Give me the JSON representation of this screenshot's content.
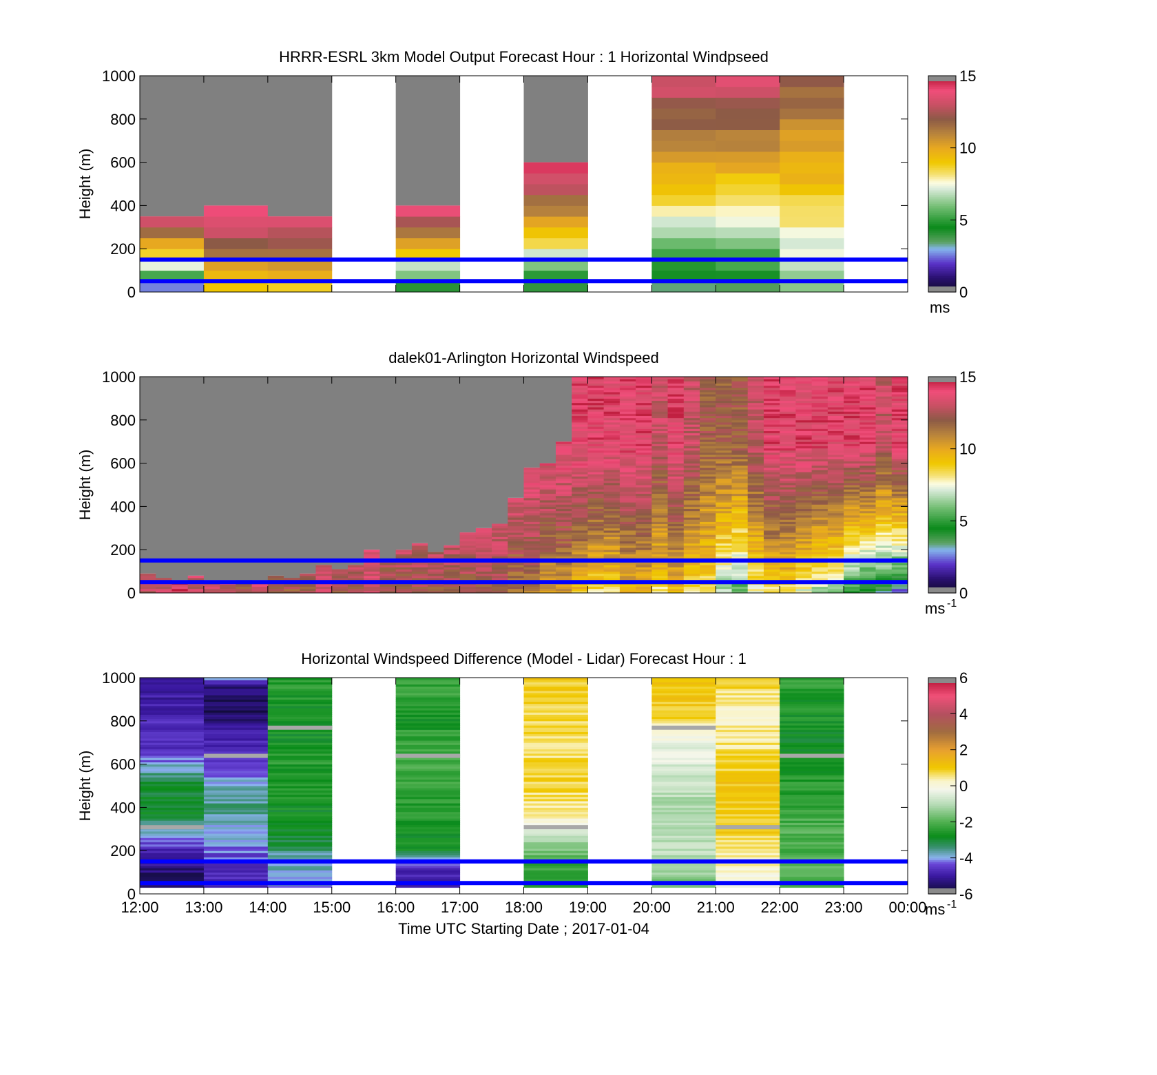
{
  "figure": {
    "x_tick_labels": [
      "12:00",
      "13:00",
      "14:00",
      "15:00",
      "16:00",
      "17:00",
      "18:00",
      "19:00",
      "20:00",
      "21:00",
      "22:00",
      "23:00",
      "00:00"
    ],
    "xlabel": "Time UTC  Starting Date ; 2017-01-04",
    "ylabel": "Height (m)",
    "y_tick_labels": [
      "0",
      "200",
      "400",
      "600",
      "800",
      "1000"
    ],
    "reference_lines_m": [
      50,
      150
    ],
    "reference_line_color": "#0000ff",
    "missing_color": "#808080",
    "no_data_color": "#ffffff"
  },
  "chart_data": [
    {
      "type": "heatmap",
      "title": "HRRR-ESRL 3km Model Output   Forecast Hour : 1 Horizontal Windpseed",
      "xlabel": "",
      "ylabel": "Height (m)",
      "xlim": [
        "12:00",
        "00:00"
      ],
      "ylim": [
        0,
        1000
      ],
      "colorbar": {
        "min": 0,
        "max": 15,
        "ticks": [
          "0",
          "5",
          "10",
          "15"
        ],
        "unit_label": "ms",
        "unit_sup": ""
      },
      "columns": [
        {
          "start": "12:00",
          "top_valid": 350,
          "low": 1.5,
          "high": 14
        },
        {
          "start": "13:00",
          "top_valid": 400,
          "low": 8,
          "high": 14.5
        },
        {
          "start": "14:00",
          "top_valid": 350,
          "low": 8.5,
          "high": 13.5
        },
        {
          "start": "15:00",
          "top_valid": null
        },
        {
          "start": "16:00",
          "top_valid": 400,
          "low": 3,
          "high": 14
        },
        {
          "start": "17:00",
          "top_valid": null
        },
        {
          "start": "18:00",
          "top_valid": 600,
          "low": 3,
          "high": 14.5
        },
        {
          "start": "19:00",
          "top_valid": null
        },
        {
          "start": "20:00",
          "top_valid": 1000,
          "low": 3,
          "high": 13.5
        },
        {
          "start": "21:00",
          "top_valid": 1000,
          "low": 3,
          "high": 13.5
        },
        {
          "start": "22:00",
          "top_valid": 1000,
          "low": 5.5,
          "high": 12
        },
        {
          "start": "23:00",
          "top_valid": null
        }
      ]
    },
    {
      "type": "heatmap",
      "title": "dalek01-Arlington  Horizontal Windspeed",
      "xlabel": "",
      "ylabel": "Height (m)",
      "xlim": [
        "12:00",
        "00:00"
      ],
      "ylim": [
        0,
        1000
      ],
      "colorbar": {
        "min": 0,
        "max": 15,
        "ticks": [
          "0",
          "5",
          "10",
          "15"
        ],
        "unit_label": "ms",
        "unit_sup": "-1"
      },
      "profile_interval_min": 15,
      "top_valid_m": [
        90,
        70,
        60,
        80,
        60,
        60,
        50,
        60,
        80,
        70,
        90,
        130,
        110,
        130,
        200,
        150,
        200,
        230,
        190,
        220,
        280,
        300,
        320,
        440,
        580,
        600,
        700,
        1000,
        1000,
        1000,
        1000,
        1000,
        1000,
        1000,
        1000,
        1000,
        1000,
        1000,
        1000,
        1000,
        1000,
        1000,
        1000,
        1000,
        1000,
        1000,
        1000,
        1000
      ],
      "low_m_per_s": [
        13,
        13,
        14,
        13,
        13,
        13,
        12,
        13,
        12,
        12,
        12,
        13,
        12,
        12,
        13,
        12,
        12,
        12,
        12,
        12,
        12,
        12,
        12,
        11,
        11,
        10,
        10,
        9,
        8,
        8,
        9,
        9,
        8,
        9,
        8,
        8,
        6,
        5,
        7,
        8,
        8,
        7,
        6,
        6,
        4,
        3,
        3,
        2
      ],
      "high_m_per_s": [
        14,
        14,
        14,
        14,
        14,
        14,
        14,
        14,
        14,
        14,
        14,
        14,
        14,
        14,
        14,
        14,
        14,
        14,
        14,
        14,
        14,
        14,
        14,
        14,
        14,
        14,
        14,
        14,
        14,
        14,
        14,
        14,
        13,
        14,
        13,
        12,
        12,
        12,
        13,
        14,
        14,
        14,
        14,
        14,
        14,
        14,
        13,
        14
      ]
    },
    {
      "type": "heatmap",
      "title": "Horizontal Windspeed Difference (Model - Lidar) Forecast Hour : 1",
      "xlabel": "Time UTC  Starting Date ; 2017-01-04",
      "ylabel": "Height (m)",
      "xlim": [
        "12:00",
        "00:00"
      ],
      "ylim": [
        0,
        1000
      ],
      "colorbar": {
        "min": -6,
        "max": 6,
        "ticks": [
          "-6",
          "-4",
          "-2",
          "0",
          "2",
          "4",
          "6"
        ],
        "unit_label": "ms",
        "unit_sup": "-1"
      },
      "columns": [
        {
          "start": "12:00",
          "bottom": 30,
          "stops": [
            [
              0,
              -5.2
            ],
            [
              80,
              -5.5
            ],
            [
              200,
              -4.8
            ],
            [
              300,
              -3.5
            ],
            [
              400,
              -2.8
            ],
            [
              500,
              -3
            ],
            [
              600,
              -4
            ],
            [
              700,
              -4.7
            ],
            [
              900,
              -4.9
            ],
            [
              1000,
              -5.2
            ]
          ]
        },
        {
          "start": "13:00",
          "bottom": 30,
          "stops": [
            [
              0,
              -4.8
            ],
            [
              150,
              -4.5
            ],
            [
              300,
              -3.8
            ],
            [
              450,
              -3.5
            ],
            [
              550,
              -4.2
            ],
            [
              700,
              -4.8
            ],
            [
              850,
              -5.6
            ],
            [
              950,
              -5.4
            ],
            [
              1000,
              -4
            ]
          ]
        },
        {
          "start": "14:00",
          "bottom": 30,
          "stops": [
            [
              0,
              -4
            ],
            [
              150,
              -3.8
            ],
            [
              250,
              -3
            ],
            [
              350,
              -2.8
            ],
            [
              600,
              -2.5
            ],
            [
              800,
              -2.8
            ],
            [
              1000,
              -2.4
            ]
          ]
        },
        {
          "start": "15:00",
          "bottom": null
        },
        {
          "start": "16:00",
          "bottom": 30,
          "stops": [
            [
              0,
              -5
            ],
            [
              150,
              -4.5
            ],
            [
              200,
              -2.8
            ],
            [
              400,
              -2.5
            ],
            [
              600,
              -2
            ],
            [
              800,
              -2.6
            ],
            [
              1000,
              -2.2
            ]
          ]
        },
        {
          "start": "17:00",
          "bottom": null
        },
        {
          "start": "18:00",
          "bottom": 30,
          "stops": [
            [
              0,
              -2.5
            ],
            [
              150,
              -2.2
            ],
            [
              250,
              -1
            ],
            [
              350,
              0.3
            ],
            [
              500,
              0.8
            ],
            [
              700,
              0.6
            ],
            [
              900,
              0.8
            ],
            [
              1000,
              1
            ]
          ]
        },
        {
          "start": "19:00",
          "bottom": null
        },
        {
          "start": "20:00",
          "bottom": 30,
          "stops": [
            [
              0,
              -1.8
            ],
            [
              200,
              -0.8
            ],
            [
              400,
              -1.2
            ],
            [
              600,
              -0.5
            ],
            [
              760,
              -0.2
            ],
            [
              800,
              0.9
            ],
            [
              1000,
              1.1
            ]
          ]
        },
        {
          "start": "21:00",
          "bottom": 30,
          "stops": [
            [
              0,
              -0.4
            ],
            [
              150,
              0.3
            ],
            [
              300,
              1
            ],
            [
              500,
              1.1
            ],
            [
              700,
              0.5
            ],
            [
              850,
              0.2
            ],
            [
              1000,
              1
            ]
          ]
        },
        {
          "start": "22:00",
          "bottom": 30,
          "stops": [
            [
              0,
              -2
            ],
            [
              150,
              -2
            ],
            [
              300,
              -2
            ],
            [
              500,
              -2.5
            ],
            [
              700,
              -2.8
            ],
            [
              900,
              -2.6
            ],
            [
              1000,
              -2.2
            ]
          ]
        },
        {
          "start": "23:00",
          "bottom": null
        }
      ]
    }
  ]
}
